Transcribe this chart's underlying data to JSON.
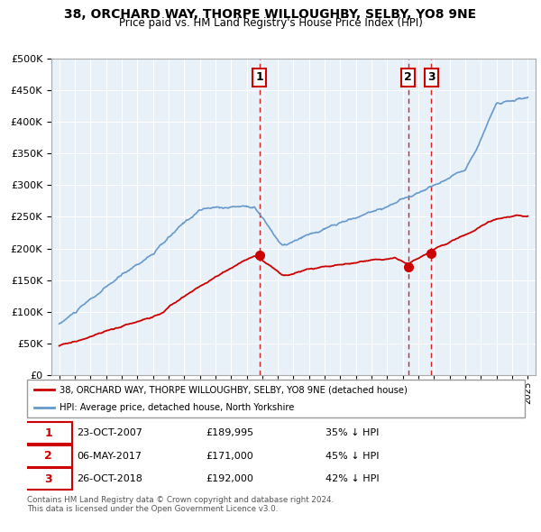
{
  "title": "38, ORCHARD WAY, THORPE WILLOUGHBY, SELBY, YO8 9NE",
  "subtitle": "Price paid vs. HM Land Registry's House Price Index (HPI)",
  "legend_line1": "38, ORCHARD WAY, THORPE WILLOUGHBY, SELBY, YO8 9NE (detached house)",
  "legend_line2": "HPI: Average price, detached house, North Yorkshire",
  "footer": "Contains HM Land Registry data © Crown copyright and database right 2024.\nThis data is licensed under the Open Government Licence v3.0.",
  "table_rows": [
    {
      "num": "1",
      "date": "23-OCT-2007",
      "price": "£189,995",
      "hpi": "35% ↓ HPI"
    },
    {
      "num": "2",
      "date": "06-MAY-2017",
      "price": "£171,000",
      "hpi": "45% ↓ HPI"
    },
    {
      "num": "3",
      "date": "26-OCT-2018",
      "price": "£192,000",
      "hpi": "42% ↓ HPI"
    }
  ],
  "sale_markers": [
    {
      "year": 2007.81,
      "price": 189995,
      "label": "1"
    },
    {
      "year": 2017.35,
      "price": 171000,
      "label": "2"
    },
    {
      "year": 2018.81,
      "price": 192000,
      "label": "3"
    }
  ],
  "vlines": [
    2007.81,
    2017.35,
    2018.81
  ],
  "ylim": [
    0,
    500000
  ],
  "xlim_start": 1994.5,
  "xlim_end": 2025.5,
  "red_color": "#cc0000",
  "blue_color": "#6699cc",
  "chart_bg": "#e8f0f8",
  "background_color": "#ffffff",
  "grid_color": "#ffffff"
}
